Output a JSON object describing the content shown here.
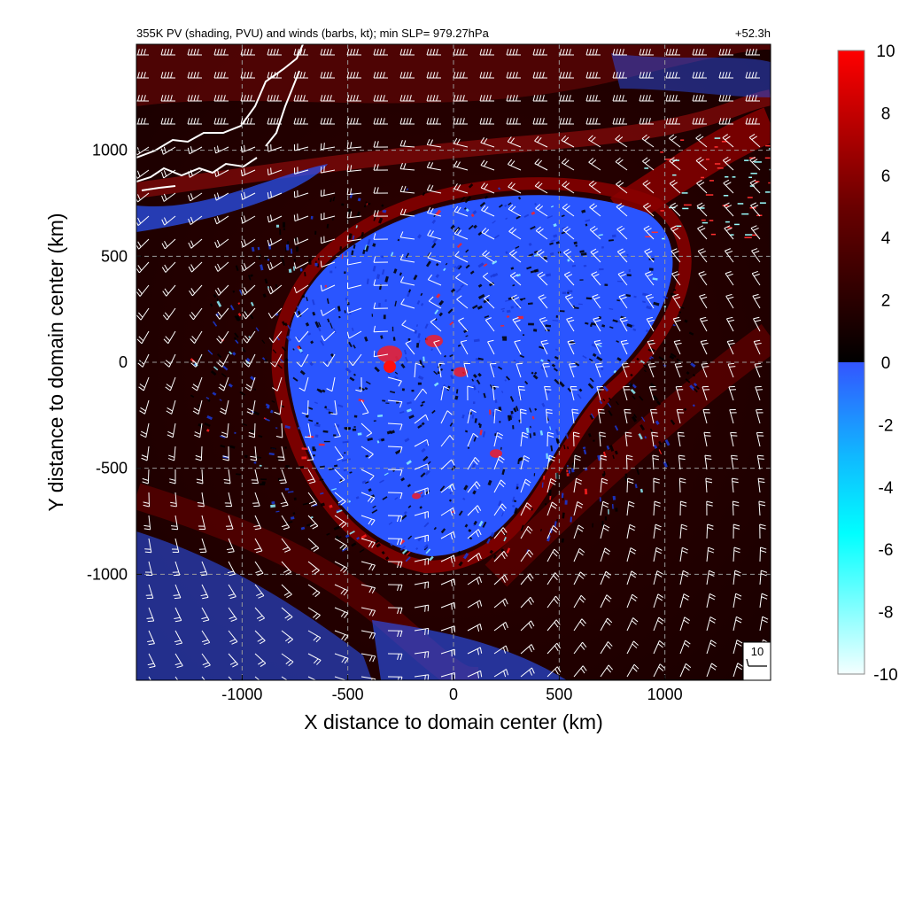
{
  "chart_data": {
    "type": "heatmap",
    "title": "355K PV (shading, PVU) and winds (barbs, kt); min SLP= 979.27hPa",
    "time_label": "+52.3h",
    "xlabel": "X distance to domain center (km)",
    "ylabel": "Y distance to domain center (km)",
    "xlim": [
      -1500,
      1500
    ],
    "ylim": [
      -1500,
      1500
    ],
    "xticks": [
      -1000,
      -500,
      0,
      500,
      1000
    ],
    "yticks": [
      -1000,
      -500,
      0,
      500,
      1000
    ],
    "xtick_labels": [
      "-1000",
      "-500",
      "0",
      "500",
      "1000"
    ],
    "ytick_labels": [
      "-1000",
      "-500",
      "0",
      "500",
      "1000"
    ],
    "grid": true,
    "colorbar": {
      "range": [
        -10,
        10
      ],
      "ticks": [
        10,
        8,
        6,
        4,
        2,
        0,
        -2,
        -4,
        -6,
        -8,
        -10
      ],
      "tick_labels": [
        "10",
        "8",
        "6",
        "4",
        "2",
        "0",
        "-2",
        "-4",
        "-6",
        "-8",
        "-10"
      ],
      "colors_positive": [
        "#000000",
        "#3a0000",
        "#7a0000",
        "#bb0000",
        "#ff0000"
      ],
      "colors_negative": [
        "#3355ff",
        "#1aa6ff",
        "#00ffff",
        "#b0ffff",
        "#f4ffff"
      ]
    },
    "features": {
      "cyclone_center_km": [
        -300,
        0
      ],
      "min_slp_hpa": 979.27,
      "reference_barb_kt": 10
    },
    "colors": {
      "background_field": "#1a0000",
      "negative_pv": "#2a55ff",
      "positive_pv": "#e00000",
      "coastline": "#ffffff",
      "barb": "#ffffff"
    }
  },
  "legend_box": {
    "label": "10"
  }
}
